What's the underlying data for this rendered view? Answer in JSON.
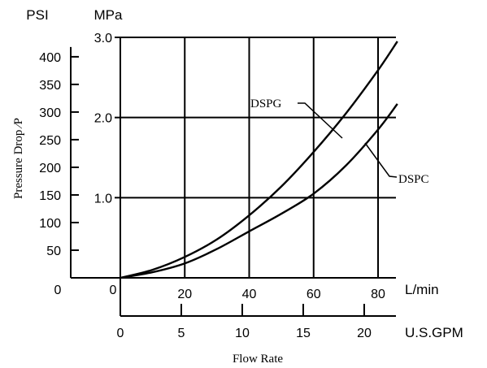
{
  "chart_data": {
    "type": "line",
    "title": "",
    "xlabel": "Flow Rate",
    "ylabel": "Pressure Drop ⁄P",
    "x_unit_primary": "L/min",
    "x_unit_secondary": "U.S.GPM",
    "y_unit_primary": "MPa",
    "y_unit_secondary": "PSI",
    "xlim": [
      0,
      85
    ],
    "ylim": [
      0,
      3.0
    ],
    "grid": true,
    "x_ticks": [
      {
        "value": 0,
        "label": "0"
      },
      {
        "value": 20,
        "label": "20"
      },
      {
        "value": 40,
        "label": "40"
      },
      {
        "value": 60,
        "label": "60"
      },
      {
        "value": 80,
        "label": "80"
      }
    ],
    "x_ticks_secondary": [
      {
        "value": 0,
        "label": "0"
      },
      {
        "value": 5,
        "label": "5"
      },
      {
        "value": 10,
        "label": "10"
      },
      {
        "value": 15,
        "label": "15"
      },
      {
        "value": 20,
        "label": "20"
      }
    ],
    "y_ticks": [
      {
        "value": 1.0,
        "label": "1.0"
      },
      {
        "value": 2.0,
        "label": "2.0"
      },
      {
        "value": 3.0,
        "label": "3.0"
      }
    ],
    "y_zero_label": "0",
    "y_ticks_secondary": [
      {
        "value": 0,
        "label": "0"
      },
      {
        "value": 50,
        "label": "50"
      },
      {
        "value": 100,
        "label": "100"
      },
      {
        "value": 150,
        "label": "150"
      },
      {
        "value": 200,
        "label": "200"
      },
      {
        "value": 250,
        "label": "250"
      },
      {
        "value": 300,
        "label": "300"
      },
      {
        "value": 350,
        "label": "350"
      },
      {
        "value": 400,
        "label": "400"
      }
    ],
    "series": [
      {
        "name": "DSPG",
        "x": [
          0,
          10,
          20,
          30,
          40,
          50,
          60,
          70,
          80,
          86
        ],
        "y": [
          0,
          0.1,
          0.26,
          0.48,
          0.78,
          1.14,
          1.57,
          2.05,
          2.59,
          2.95
        ]
      },
      {
        "name": "DSPC",
        "x": [
          0,
          10,
          20,
          30,
          40,
          50,
          60,
          70,
          80,
          86
        ],
        "y": [
          0,
          0.07,
          0.18,
          0.36,
          0.58,
          0.8,
          1.05,
          1.4,
          1.85,
          2.17
        ]
      }
    ]
  }
}
